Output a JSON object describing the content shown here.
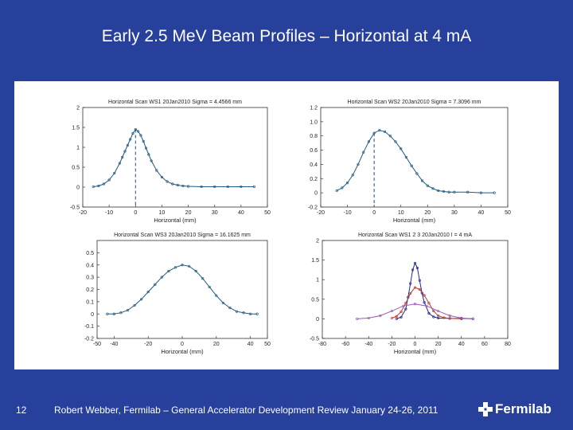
{
  "slide": {
    "title": "Early 2.5 MeV Beam Profiles – Horizontal at 4 mA",
    "slide_number": "12",
    "footer": "Robert Webber, Fermilab – General Accelerator Development Review  January 24-26, 2011",
    "logo_text": "Fermilab"
  },
  "colors": {
    "background": "#27409b",
    "trace": "#1f5a82",
    "mark": "#1f4f86"
  },
  "chart_data": [
    {
      "type": "scatter",
      "title": "Horizontal Scan WS1 20Jan2010  Sigma = 4.4566 mm",
      "xlabel": "Horizontal (mm)",
      "xlim": [
        -20,
        50
      ],
      "ylim": [
        -0.5,
        2
      ],
      "xticks": [
        -20,
        -10,
        0,
        10,
        20,
        30,
        40,
        50
      ],
      "xtick_labels": [
        "-20",
        "-10",
        "0",
        "10",
        "20",
        "30",
        "40",
        "50"
      ],
      "yticks": [
        -0.5,
        0,
        0.5,
        1,
        1.5,
        2
      ],
      "ytick_labels": [
        "-0.5",
        "0",
        "0.5",
        "1",
        "1.5",
        "2"
      ],
      "center_line_x": 0,
      "series": [
        {
          "x": [
            -16,
            -14,
            -12,
            -10,
            -8,
            -6,
            -5,
            -4,
            -3,
            -2,
            -1,
            0,
            1,
            2,
            3,
            4,
            5,
            6,
            8,
            10,
            12,
            14,
            16,
            18,
            20,
            25,
            30,
            35,
            40,
            45
          ],
          "y": [
            0.01,
            0.03,
            0.08,
            0.18,
            0.35,
            0.6,
            0.75,
            0.9,
            1.05,
            1.2,
            1.35,
            1.45,
            1.4,
            1.3,
            1.15,
            0.98,
            0.82,
            0.66,
            0.42,
            0.25,
            0.14,
            0.08,
            0.05,
            0.03,
            0.02,
            0.01,
            0.01,
            0.01,
            0.01,
            0.01
          ]
        }
      ]
    },
    {
      "type": "scatter",
      "title": "Horizontal Scan WS2 20Jan2010  Sigma = 7.3096 mm",
      "xlabel": "Horizontal (mm)",
      "xlim": [
        -20,
        50
      ],
      "ylim": [
        -0.2,
        1.2
      ],
      "xticks": [
        -20,
        -10,
        0,
        10,
        20,
        30,
        40,
        50
      ],
      "xtick_labels": [
        "-20",
        "-10",
        "0",
        "10",
        "20",
        "30",
        "40",
        "50"
      ],
      "yticks": [
        -0.2,
        0,
        0.2,
        0.4,
        0.6,
        0.8,
        1,
        1.2
      ],
      "ytick_labels": [
        "-0.2",
        "0",
        "0.2",
        "0.4",
        "0.6",
        "0.8",
        "1.0",
        "1.2"
      ],
      "center_line_x": 0,
      "series": [
        {
          "x": [
            -14,
            -12,
            -10,
            -8,
            -6,
            -4,
            -2,
            0,
            2,
            4,
            6,
            8,
            10,
            12,
            14,
            16,
            18,
            20,
            22,
            24,
            26,
            28,
            30,
            35,
            40,
            45
          ],
          "y": [
            0.03,
            0.07,
            0.14,
            0.25,
            0.4,
            0.57,
            0.72,
            0.84,
            0.88,
            0.86,
            0.8,
            0.72,
            0.62,
            0.5,
            0.38,
            0.27,
            0.17,
            0.1,
            0.06,
            0.03,
            0.02,
            0.01,
            0.01,
            0.01,
            0.0,
            0.0
          ]
        }
      ]
    },
    {
      "type": "scatter",
      "title": "Horizontal Scan WS3 20Jan2010  Sigma = 16.1625 mm",
      "xlabel": "Horizontal (mm)",
      "xlim": [
        -50,
        50
      ],
      "ylim": [
        -0.2,
        0.6
      ],
      "xticks": [
        -50,
        -40,
        -20,
        0,
        20,
        40,
        50
      ],
      "xtick_labels": [
        "-50",
        "-40",
        "-20",
        "0",
        "20",
        "40",
        "50"
      ],
      "yticks": [
        -0.2,
        -0.1,
        0,
        0.1,
        0.2,
        0.3,
        0.4,
        0.5
      ],
      "ytick_labels": [
        "-0.2",
        "-0.1",
        "0",
        "0.1",
        "0.2",
        "0.3",
        "0.4",
        "0.5"
      ],
      "series": [
        {
          "x": [
            -44,
            -40,
            -36,
            -32,
            -28,
            -24,
            -20,
            -16,
            -12,
            -8,
            -4,
            0,
            4,
            8,
            12,
            16,
            20,
            24,
            28,
            32,
            36,
            40,
            44
          ],
          "y": [
            0.0,
            0.0,
            0.01,
            0.03,
            0.07,
            0.12,
            0.18,
            0.24,
            0.3,
            0.35,
            0.38,
            0.4,
            0.39,
            0.35,
            0.29,
            0.22,
            0.15,
            0.09,
            0.05,
            0.02,
            0.01,
            0.0,
            0.0
          ]
        }
      ]
    },
    {
      "type": "line",
      "title": "Horizontal Scan WS1 2 3 20Jan2010  I = 4 mA",
      "xlabel": "Horizontal (mm)",
      "xlim": [
        -80,
        80
      ],
      "ylim": [
        -0.5,
        2
      ],
      "xticks": [
        -80,
        -60,
        -40,
        -20,
        0,
        20,
        40,
        60,
        80
      ],
      "xtick_labels": [
        "-80",
        "-60",
        "-40",
        "-20",
        "0",
        "20",
        "40",
        "60",
        "80"
      ],
      "yticks": [
        -0.5,
        0,
        0.5,
        1,
        1.5,
        2
      ],
      "ytick_labels": [
        "-0.5",
        "0",
        "0.5",
        "1",
        "1.5",
        "2"
      ],
      "series": [
        {
          "color": "#1f2a8a",
          "x": [
            -16,
            -12,
            -8,
            -6,
            -4,
            -2,
            0,
            2,
            4,
            6,
            8,
            12,
            16,
            20,
            30,
            40,
            50
          ],
          "y": [
            0.0,
            0.04,
            0.25,
            0.55,
            0.9,
            1.25,
            1.42,
            1.3,
            0.98,
            0.66,
            0.42,
            0.14,
            0.05,
            0.02,
            0.01,
            0.01,
            0.0
          ]
        },
        {
          "color": "#c0392b",
          "x": [
            -20,
            -16,
            -12,
            -8,
            -4,
            0,
            4,
            8,
            12,
            16,
            20,
            25,
            30,
            40
          ],
          "y": [
            0.02,
            0.06,
            0.18,
            0.4,
            0.65,
            0.8,
            0.75,
            0.6,
            0.4,
            0.2,
            0.08,
            0.03,
            0.01,
            0.0
          ]
        },
        {
          "color": "#9b59b6",
          "x": [
            -50,
            -40,
            -30,
            -20,
            -10,
            0,
            10,
            20,
            30,
            40,
            50
          ],
          "y": [
            0.0,
            0.02,
            0.08,
            0.2,
            0.33,
            0.38,
            0.33,
            0.2,
            0.08,
            0.02,
            0.0
          ]
        }
      ]
    }
  ]
}
